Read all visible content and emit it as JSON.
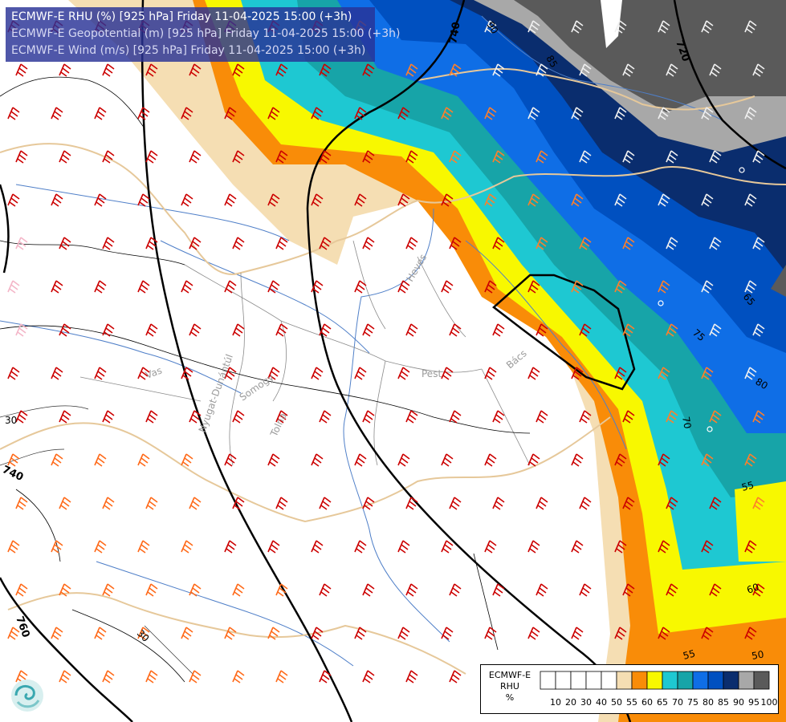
{
  "header": {
    "lines": [
      "ECMWF-E RHU (%) [925 hPa] Friday 11-04-2025 15:00 (+3h)",
      "ECMWF-E Geopotential (m) [925 hPa] Friday 11-04-2025 15:00 (+3h)",
      "ECMWF-E Wind (m/s) [925 hPa] Friday 11-04-2025 15:00 (+3h)"
    ]
  },
  "map": {
    "region_labels": [
      "Nyugat-Dunántúl",
      "Vas",
      "Somogy",
      "Tolna",
      "Heves",
      "Pest",
      "Bács"
    ],
    "geopotential_labels": [
      "720",
      "740",
      "740",
      "760"
    ],
    "rhu_labels": [
      "90",
      "85",
      "80",
      "75",
      "70",
      "65",
      "60",
      "55",
      "50",
      "30",
      "30"
    ]
  },
  "legend": {
    "product": "ECMWF-E",
    "variable": "RHU",
    "unit": "%",
    "bins": [
      {
        "label": "10",
        "color": "#ffffff"
      },
      {
        "label": "20",
        "color": "#ffffff"
      },
      {
        "label": "30",
        "color": "#ffffff"
      },
      {
        "label": "40",
        "color": "#ffffff"
      },
      {
        "label": "50",
        "color": "#ffffff"
      },
      {
        "label": "55",
        "color": "#f5deb3"
      },
      {
        "label": "60",
        "color": "#f98c08"
      },
      {
        "label": "65",
        "color": "#f8f800"
      },
      {
        "label": "70",
        "color": "#1ec8d2"
      },
      {
        "label": "75",
        "color": "#17a4a8"
      },
      {
        "label": "80",
        "color": "#0f6ee6"
      },
      {
        "label": "85",
        "color": "#0050c0"
      },
      {
        "label": "90",
        "color": "#0a2d6e"
      },
      {
        "label": "95",
        "color": "#a8a8a8"
      },
      {
        "label": "100",
        "color": "#5a5a5a"
      }
    ]
  },
  "logo": {
    "icon": "ecmwf-swirl-icon"
  }
}
